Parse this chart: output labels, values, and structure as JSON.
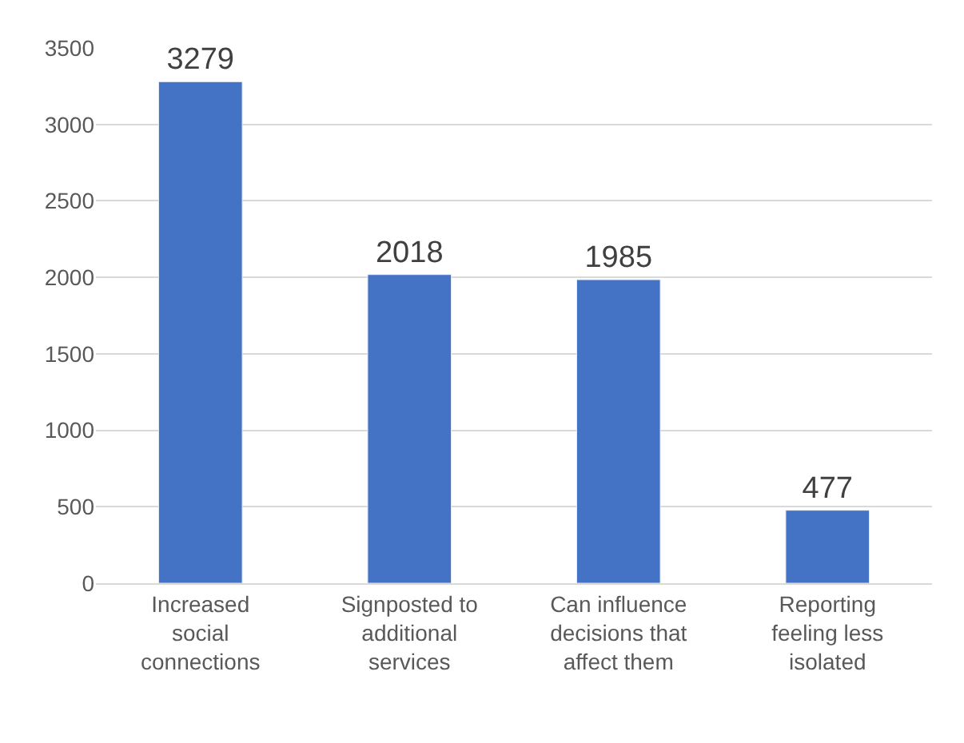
{
  "chart_data": {
    "type": "bar",
    "categories": [
      "Increased social connections",
      "Signposted to additional services",
      "Can influence decisions that affect them",
      "Reporting feeling less isolated"
    ],
    "values": [
      3279,
      2018,
      1985,
      477
    ],
    "color": "#4472c4",
    "ylim": [
      0,
      3500
    ],
    "yticks": [
      0,
      500,
      1000,
      1500,
      2000,
      2500,
      3000,
      3500
    ],
    "grid": "y",
    "data_labels": true
  }
}
